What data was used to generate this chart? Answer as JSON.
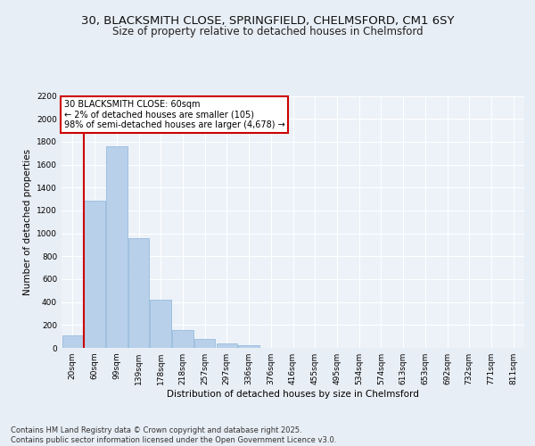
{
  "title_line1": "30, BLACKSMITH CLOSE, SPRINGFIELD, CHELMSFORD, CM1 6SY",
  "title_line2": "Size of property relative to detached houses in Chelmsford",
  "xlabel": "Distribution of detached houses by size in Chelmsford",
  "ylabel": "Number of detached properties",
  "categories": [
    "20sqm",
    "60sqm",
    "99sqm",
    "139sqm",
    "178sqm",
    "218sqm",
    "257sqm",
    "297sqm",
    "336sqm",
    "376sqm",
    "416sqm",
    "455sqm",
    "495sqm",
    "534sqm",
    "574sqm",
    "613sqm",
    "653sqm",
    "692sqm",
    "732sqm",
    "771sqm",
    "811sqm"
  ],
  "values": [
    110,
    1285,
    1760,
    960,
    420,
    155,
    75,
    40,
    22,
    0,
    0,
    0,
    0,
    0,
    0,
    0,
    0,
    0,
    0,
    0,
    0
  ],
  "bar_color": "#b8d0ea",
  "bar_edge_color": "#8ab4d8",
  "highlight_bar_idx": 1,
  "highlight_color": "#cc0000",
  "ylim": [
    0,
    2200
  ],
  "yticks": [
    0,
    200,
    400,
    600,
    800,
    1000,
    1200,
    1400,
    1600,
    1800,
    2000,
    2200
  ],
  "annotation_text": "30 BLACKSMITH CLOSE: 60sqm\n← 2% of detached houses are smaller (105)\n98% of semi-detached houses are larger (4,678) →",
  "annotation_box_color": "#ffffff",
  "annotation_border_color": "#cc0000",
  "footnote": "Contains HM Land Registry data © Crown copyright and database right 2025.\nContains public sector information licensed under the Open Government Licence v3.0.",
  "bg_color": "#e8eef5",
  "plot_bg_color": "#edf2f8",
  "grid_color": "#ffffff",
  "title_fontsize": 9.5,
  "subtitle_fontsize": 8.5,
  "axis_label_fontsize": 7.5,
  "tick_fontsize": 6.5,
  "annotation_fontsize": 7,
  "footnote_fontsize": 6
}
